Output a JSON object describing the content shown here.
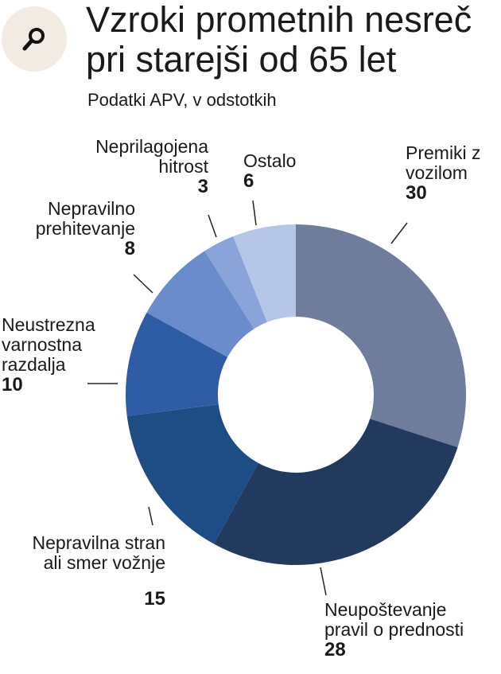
{
  "header": {
    "title_line1": "Vzroki prometnih nesreč",
    "title_line2": "pri starejši od 65 let",
    "subtitle": "Podatki APV, v odstotkih",
    "badge_icon": "search-icon"
  },
  "chart_data": {
    "type": "pie",
    "donut": true,
    "title": "Vzroki prometnih nesreč pri starejši od 65 let",
    "subtitle": "Podatki APV, v odstotkih",
    "slices": [
      {
        "label": "Premiki z vozilom",
        "value": 30,
        "color": "#6f7c9c"
      },
      {
        "label": "Neupoštevanje pravil o prednosti",
        "value": 28,
        "color": "#213a5e"
      },
      {
        "label": "Nepravilna stran ali smer vožnje",
        "value": 15,
        "color": "#1e4c84"
      },
      {
        "label": "Neustrezna varnostna razdalja",
        "value": 10,
        "color": "#2e5da6"
      },
      {
        "label": "Nepravilno prehitevanje",
        "value": 8,
        "color": "#6a8ccc"
      },
      {
        "label": "Neprilagojena hitrost",
        "value": 3,
        "color": "#8aa3d8"
      },
      {
        "label": "Ostalo",
        "value": 6,
        "color": "#b6c6e8"
      }
    ]
  },
  "labels": [
    {
      "name": "Premiki z\nvozilom",
      "value": "30"
    },
    {
      "name": "Neupoštevanje\npravil o prednosti",
      "value": "28"
    },
    {
      "name": "Nepravilna stran\nali smer vožnje",
      "value": "15"
    },
    {
      "name": "Neustrezna\nvarnostna\nrazdalja",
      "value": "10"
    },
    {
      "name": "Nepravilno\nprehitevanje",
      "value": "8"
    },
    {
      "name": "Neprilagojena\nhitrost",
      "value": "3"
    },
    {
      "name": "Ostalo",
      "value": "6"
    }
  ]
}
